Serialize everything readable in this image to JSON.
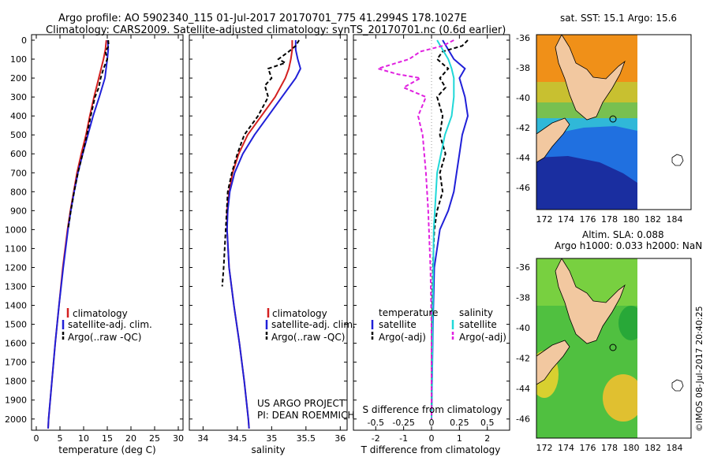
{
  "header": {
    "line1": "Argo profile: AO 5902340_115 01-Jul-2017 20170701_775 41.2994S 178.1027E",
    "line2": "Climatology: CARS2009. Satellite-adjusted climatology: synTS_20170701.nc (0.6d earlier)"
  },
  "colors": {
    "clim": "#d42020",
    "sat": "#2020d8",
    "argo": "#000000",
    "sal_sat": "#20d8d8",
    "sal_argo": "#e020e0",
    "land": "#f2c8a0"
  },
  "chart_data": [
    {
      "type": "line",
      "title": "",
      "xlabel": "temperature (deg C)",
      "ylabel": "",
      "xlim": [
        -1,
        31
      ],
      "ylim": [
        2080,
        0
      ],
      "xticks": [
        0,
        5,
        10,
        15,
        20,
        25,
        30
      ],
      "yticks": [
        0,
        100,
        200,
        300,
        400,
        500,
        600,
        700,
        800,
        900,
        1000,
        1100,
        1200,
        1300,
        1400,
        1500,
        1600,
        1700,
        1800,
        1900,
        2000
      ],
      "legend": [
        "climatology",
        "satellite-adj. clim.",
        "Argo(..raw -QC)"
      ],
      "series": [
        {
          "name": "climatology",
          "depth": [
            0,
            50,
            100,
            200,
            300,
            400,
            500,
            600,
            700,
            800,
            900,
            1000,
            1200,
            1400,
            1600,
            1800,
            2000,
            2050
          ],
          "values": [
            14.8,
            14.6,
            14.2,
            13.2,
            12.2,
            11.3,
            10.5,
            9.5,
            8.6,
            7.9,
            7.2,
            6.6,
            5.6,
            4.8,
            4.0,
            3.3,
            2.6,
            2.5
          ]
        },
        {
          "name": "satellite-adj. clim.",
          "depth": [
            0,
            50,
            100,
            200,
            300,
            400,
            500,
            600,
            700,
            800,
            900,
            1000,
            1200,
            1400,
            1600,
            1800,
            2000,
            2050
          ],
          "values": [
            15.1,
            15.2,
            15.0,
            14.5,
            13.3,
            12.0,
            10.9,
            9.8,
            8.8,
            8.0,
            7.3,
            6.7,
            5.7,
            4.8,
            4.0,
            3.3,
            2.6,
            2.5
          ]
        },
        {
          "name": "Argo(..raw -QC)",
          "depth": [
            0,
            30,
            60,
            100,
            150,
            200,
            250,
            300,
            400,
            500,
            600,
            700,
            800,
            900,
            1000
          ],
          "values": [
            15.2,
            15.3,
            14.6,
            15.0,
            14.2,
            13.6,
            13.2,
            12.4,
            11.5,
            10.7,
            9.8,
            8.8,
            8.0,
            7.3,
            6.7
          ]
        }
      ]
    },
    {
      "type": "line",
      "title": "",
      "xlabel": "salinity",
      "ylabel": "",
      "xlim": [
        33.8,
        36.1
      ],
      "ylim": [
        2080,
        0
      ],
      "xticks": [
        34,
        34.5,
        35,
        35.5,
        36
      ],
      "legend": [
        "climatology",
        "satellite-adj. clim.",
        "Argo(..raw -QC)"
      ],
      "annotations": [
        "US ARGO PROJECT",
        "PI: DEAN ROEMMICH"
      ],
      "series": [
        {
          "name": "climatology",
          "depth": [
            0,
            50,
            100,
            150,
            200,
            300,
            400,
            500,
            600,
            700,
            800,
            900,
            1000,
            1200,
            1400,
            1600,
            1800,
            2000,
            2050
          ],
          "values": [
            35.3,
            35.3,
            35.28,
            35.25,
            35.2,
            35.05,
            34.85,
            34.65,
            34.52,
            34.43,
            34.38,
            34.35,
            34.35,
            34.38,
            34.45,
            34.53,
            34.6,
            34.66,
            34.67
          ]
        },
        {
          "name": "satellite-adj. clim.",
          "depth": [
            0,
            50,
            100,
            150,
            200,
            300,
            400,
            500,
            600,
            700,
            800,
            900,
            1000,
            1200,
            1400,
            1600,
            1800,
            2000,
            2050
          ],
          "values": [
            35.35,
            35.35,
            35.38,
            35.42,
            35.35,
            35.15,
            34.95,
            34.75,
            34.58,
            34.46,
            34.39,
            34.36,
            34.35,
            34.38,
            34.45,
            34.53,
            34.6,
            34.66,
            34.67
          ]
        },
        {
          "name": "Argo(..raw -QC)",
          "depth": [
            0,
            30,
            60,
            100,
            120,
            150,
            200,
            240,
            300,
            400,
            500,
            600,
            700,
            800,
            1000,
            1200,
            1300
          ],
          "values": [
            35.4,
            35.35,
            35.25,
            35.1,
            35.2,
            34.95,
            35.0,
            34.9,
            34.95,
            34.8,
            34.6,
            34.5,
            34.42,
            34.36,
            34.33,
            34.3,
            34.28
          ]
        }
      ]
    },
    {
      "type": "line",
      "title": "",
      "xlabel": "T difference from climatology",
      "xlabel_top": "S difference from climatology",
      "ylabel": "",
      "xlim": [
        -2.8,
        2.8
      ],
      "ylim": [
        2080,
        0
      ],
      "xticks": [
        -2,
        -1,
        0,
        1,
        2
      ],
      "xticks_s": [
        -0.5,
        -0.25,
        0,
        0.25,
        0.5
      ],
      "legend_temperature": {
        "heading": "temperature",
        "items": [
          "satellite",
          "Argo(-adj)"
        ]
      },
      "legend_salinity": {
        "heading": "salinity",
        "items": [
          "satellite",
          "Argo(-adj)"
        ]
      },
      "series": [
        {
          "name": "T satellite",
          "depth": [
            0,
            50,
            100,
            150,
            200,
            300,
            400,
            500,
            600,
            700,
            800,
            900,
            1000,
            1200,
            1500,
            2000
          ],
          "values": [
            0.4,
            0.6,
            0.8,
            1.2,
            1.0,
            1.2,
            1.3,
            1.1,
            1.0,
            0.9,
            0.8,
            0.6,
            0.3,
            0.1,
            0.05,
            0.0
          ]
        },
        {
          "name": "T Argo(-adj)",
          "depth": [
            0,
            30,
            60,
            100,
            150,
            200,
            250,
            300,
            400,
            500,
            600,
            700,
            800,
            900,
            1000,
            1200,
            1500,
            2000
          ],
          "values": [
            1.3,
            1.1,
            0.4,
            0.2,
            0.6,
            0.3,
            0.5,
            0.2,
            0.4,
            0.3,
            0.5,
            0.3,
            0.4,
            0.2,
            0.1,
            0.05,
            0.02,
            0.0
          ]
        },
        {
          "name": "S satellite",
          "depth": [
            0,
            50,
            100,
            150,
            200,
            300,
            400,
            500,
            700,
            1000,
            1500,
            2000
          ],
          "values": [
            0.05,
            0.1,
            0.15,
            0.18,
            0.2,
            0.2,
            0.18,
            0.12,
            0.05,
            0.02,
            0.01,
            0.0
          ]
        },
        {
          "name": "S Argo(-adj)",
          "depth": [
            0,
            30,
            60,
            100,
            150,
            180,
            200,
            250,
            300,
            400,
            500,
            700,
            900,
            1200,
            1500,
            2000
          ],
          "values": [
            0.2,
            0.1,
            -0.1,
            -0.2,
            -0.48,
            -0.3,
            -0.1,
            -0.25,
            -0.05,
            -0.12,
            -0.08,
            -0.05,
            -0.03,
            -0.01,
            0.0,
            0.0
          ]
        }
      ]
    }
  ],
  "maps": {
    "sst": {
      "title": "sat. SST: 15.1  Argo: 15.6",
      "lat_ticks": [
        "-36",
        "-38",
        "-40",
        "-42",
        "-44",
        "-46"
      ],
      "lon_ticks": [
        "172",
        "174",
        "176",
        "178",
        "180",
        "182",
        "184"
      ]
    },
    "sla": {
      "title1": "Altim. SLA: 0.088",
      "title2": "Argo h1000: 0.033 h2000: NaN",
      "lat_ticks": [
        "-36",
        "-38",
        "-40",
        "-42",
        "-44",
        "-46"
      ],
      "lon_ticks": [
        "172",
        "174",
        "176",
        "178",
        "180",
        "182",
        "184"
      ]
    }
  },
  "footer": {
    "credit": "©IMOS 08-Jul-2017 20:40:25"
  }
}
